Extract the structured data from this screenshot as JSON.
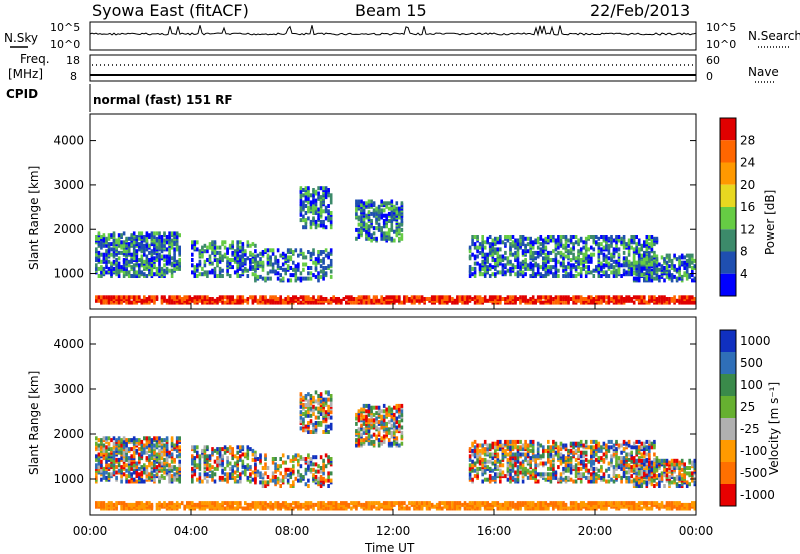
{
  "header": {
    "station": "Syowa East (fitACF)",
    "beam": "Beam 15",
    "date": "22/Feb/2013"
  },
  "colors": {
    "axis": "#000000",
    "power_scale": [
      "#0000ff",
      "#1f4fb0",
      "#3c8a6a",
      "#66cc44",
      "#e8d820",
      "#ff9900",
      "#ff6600",
      "#e00000"
    ],
    "velocity_scale": [
      "#1030c0",
      "#2f6fb8",
      "#3a8a4a",
      "#66b030",
      "#b0b0b0",
      "#ff9a00",
      "#ff7000",
      "#e80000"
    ]
  },
  "noise_panel": {
    "left_label": "N.Sky",
    "right_label": "N.Search",
    "left_ticks": [
      "10^5",
      "10^0"
    ],
    "right_ticks": [
      "10^5",
      "10^0"
    ]
  },
  "freq_panel": {
    "left_label_top": "Freq.",
    "left_label_bottom": "[MHz]",
    "right_label": "Nave",
    "left_ticks": [
      "18",
      "8"
    ],
    "right_ticks": [
      "60",
      "0"
    ]
  },
  "cpid": {
    "label": "CPID",
    "text": "normal (fast) 151 RF"
  },
  "chart_data": [
    {
      "type": "heatmap",
      "panel": "power",
      "title": "",
      "xlabel": "Time UT",
      "ylabel": "Slant Range [km]",
      "x_ticks": [
        "00:00",
        "04:00",
        "08:00",
        "12:00",
        "16:00",
        "20:00",
        "00:00"
      ],
      "y_ticks": [
        1000,
        2000,
        3000,
        4000
      ],
      "xlim": [
        0,
        24
      ],
      "ylim": [
        200,
        4600
      ],
      "colorbar_label": "Power [dB]",
      "colorbar_ticks": [
        4,
        8,
        12,
        16,
        20,
        24,
        28
      ],
      "colorbar_range": [
        0,
        32
      ]
    },
    {
      "type": "heatmap",
      "panel": "velocity",
      "title": "",
      "xlabel": "Time UT",
      "ylabel": "Slant Range [km]",
      "x_ticks": [
        "00:00",
        "04:00",
        "08:00",
        "12:00",
        "16:00",
        "20:00",
        "00:00"
      ],
      "y_ticks": [
        1000,
        2000,
        3000,
        4000
      ],
      "xlim": [
        0,
        24
      ],
      "ylim": [
        200,
        4600
      ],
      "colorbar_label": "Velocity [m s⁻¹]",
      "colorbar_ticks": [
        "1000",
        "500",
        "100",
        "25",
        "-25",
        "-100",
        "-500",
        "-1000"
      ]
    }
  ]
}
